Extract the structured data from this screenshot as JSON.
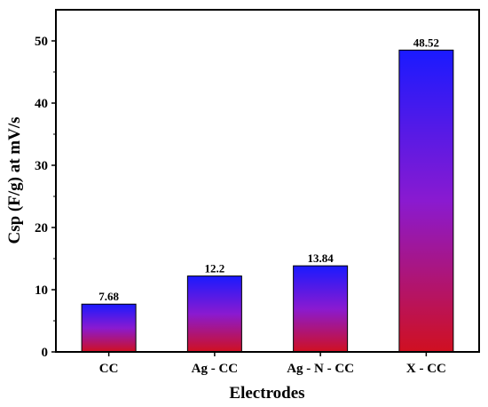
{
  "chart_data": {
    "type": "bar",
    "categories": [
      "CC",
      "Ag - CC",
      "Ag - N - CC",
      "X - CC"
    ],
    "values": [
      7.68,
      12.2,
      13.84,
      48.52
    ],
    "data_labels": [
      "7.68",
      "12.2",
      "13.84",
      "48.52"
    ],
    "xlabel": "Electrodes",
    "ylabel": "Csp (F/g) at mV/s",
    "ylim": [
      0,
      55
    ],
    "yticks": [
      0,
      10,
      20,
      30,
      40,
      50
    ],
    "grid": false,
    "legend": "none",
    "bar_gradient": {
      "top": "#1a1aff",
      "middle": "#8a1ad0",
      "bottom": "#d01020"
    }
  }
}
